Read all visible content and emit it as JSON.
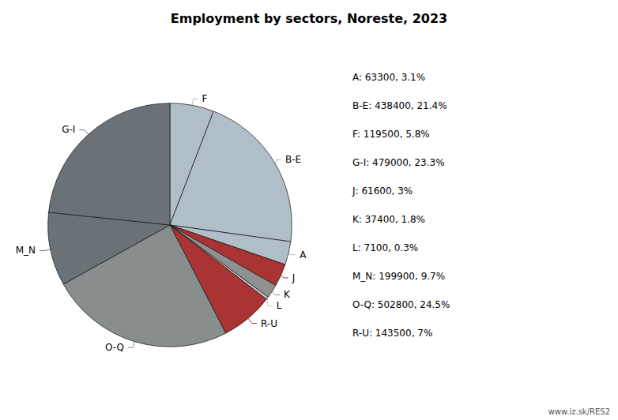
{
  "chart_data": {
    "type": "pie",
    "title": "Employment by sectors, Noreste, 2023",
    "categories": [
      "F",
      "B-E",
      "A",
      "J",
      "K",
      "L",
      "R-U",
      "O-Q",
      "M_N",
      "G-I"
    ],
    "values": [
      119500,
      438400,
      63300,
      61600,
      37400,
      7100,
      143500,
      502800,
      199900,
      479000
    ],
    "colors": [
      "#b0bec8",
      "#b0bec8",
      "#b0bec8",
      "#aa3333",
      "#909090",
      "#c8ccd0",
      "#aa3333",
      "#888e8e",
      "#6a7278",
      "#6a7278"
    ],
    "annotations": [
      "A: 63300, 3.1%",
      "B-E: 438400, 21.4%",
      "F: 119500, 5.8%",
      "G-I: 479000, 23.3%",
      "J: 61600, 3%",
      "K: 37400, 1.8%",
      "L: 7100, 0.3%",
      "M_N: 199900, 9.7%",
      "O-Q: 502800, 24.5%",
      "R-U: 143500, 7%",
      "www.iz.sk/RES2"
    ]
  }
}
